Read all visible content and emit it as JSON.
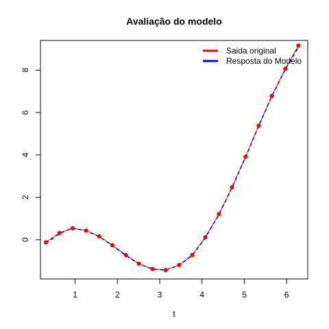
{
  "chart_data": {
    "type": "line",
    "title": "Avaliação do modelo",
    "xlabel": "t",
    "ylabel": "",
    "xlim": [
      0.18,
      6.5
    ],
    "ylim": [
      -1.85,
      9.4
    ],
    "xticks": [
      1,
      2,
      3,
      4,
      5,
      6
    ],
    "yticks": [
      0,
      2,
      4,
      6,
      8
    ],
    "grid": false,
    "legend_position": "top-right",
    "legend": [
      {
        "label": "Saida original",
        "color": "#ff0000"
      },
      {
        "label": "Resposta do Modelo",
        "color": "#0000ff"
      }
    ],
    "series": [
      {
        "name": "Saida original",
        "color": "#ff0000",
        "style": "points-line",
        "x": [
          0.31,
          0.63,
          0.94,
          1.26,
          1.57,
          1.88,
          2.2,
          2.51,
          2.83,
          3.14,
          3.46,
          3.77,
          4.08,
          4.4,
          4.71,
          5.03,
          5.34,
          5.65,
          5.97,
          6.28
        ],
        "y": [
          -0.12,
          0.32,
          0.54,
          0.43,
          0.16,
          -0.26,
          -0.72,
          -1.13,
          -1.38,
          -1.43,
          -1.19,
          -0.72,
          0.12,
          1.21,
          2.48,
          3.91,
          5.38,
          6.78,
          8.06,
          9.16
        ]
      },
      {
        "name": "Resposta do Modelo",
        "color": "#0000ff",
        "style": "dashed-line",
        "x": [
          0.31,
          0.63,
          0.94,
          1.26,
          1.57,
          1.88,
          2.2,
          2.51,
          2.83,
          3.14,
          3.46,
          3.77,
          4.08,
          4.4,
          4.71,
          5.03,
          5.34,
          5.65,
          5.97,
          6.28
        ],
        "y": [
          -0.18,
          0.3,
          0.55,
          0.42,
          0.15,
          -0.27,
          -0.74,
          -1.14,
          -1.39,
          -1.43,
          -1.2,
          -0.74,
          0.1,
          1.19,
          2.46,
          3.9,
          5.37,
          6.77,
          8.05,
          9.08
        ]
      }
    ]
  }
}
